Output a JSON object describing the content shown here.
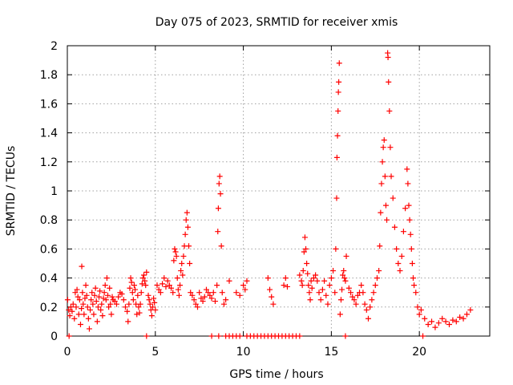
{
  "chart_data": {
    "type": "scatter",
    "title": "Day 075 of 2023, SRMTID for receiver xmis",
    "xlabel": "GPS time / hours",
    "ylabel": "SRMTID / TECUs",
    "xlim": [
      0,
      24
    ],
    "ylim": [
      0,
      2
    ],
    "x_ticks": [
      "0",
      "5",
      "10",
      "15",
      "20"
    ],
    "x_tick_values": [
      0,
      5,
      10,
      15,
      20
    ],
    "y_ticks": [
      "0",
      "0.2",
      "0.4",
      "0.6",
      "0.8",
      "1",
      "1.2",
      "1.4",
      "1.6",
      "1.8",
      "2"
    ],
    "y_tick_values": [
      0,
      0.2,
      0.4,
      0.6,
      0.8,
      1.0,
      1.2,
      1.4,
      1.6,
      1.8,
      2.0
    ],
    "grid": true,
    "marker": "plus",
    "color": "#ff0000",
    "series": [
      {
        "name": "SRMTID",
        "points": [
          [
            0.02,
            0.25
          ],
          [
            0.08,
            0.18
          ],
          [
            0.14,
            0.14
          ],
          [
            0.2,
            0.2
          ],
          [
            0.27,
            0.17
          ],
          [
            0.33,
            0.22
          ],
          [
            0.4,
            0.12
          ],
          [
            0.45,
            0.3
          ],
          [
            0.5,
            0.2
          ],
          [
            0.55,
            0.32
          ],
          [
            0.6,
            0.27
          ],
          [
            0.65,
            0.15
          ],
          [
            0.7,
            0.25
          ],
          [
            0.75,
            0.08
          ],
          [
            0.8,
            0.19
          ],
          [
            0.82,
            0.48
          ],
          [
            0.86,
            0.3
          ],
          [
            0.9,
            0.22
          ],
          [
            0.95,
            0.15
          ],
          [
            1.0,
            0.26
          ],
          [
            1.05,
            0.35
          ],
          [
            1.1,
            0.28
          ],
          [
            1.15,
            0.2
          ],
          [
            1.2,
            0.12
          ],
          [
            1.25,
            0.05
          ],
          [
            1.3,
            0.18
          ],
          [
            1.35,
            0.25
          ],
          [
            1.4,
            0.3
          ],
          [
            1.45,
            0.22
          ],
          [
            1.5,
            0.15
          ],
          [
            1.55,
            0.28
          ],
          [
            1.6,
            0.33
          ],
          [
            1.65,
            0.24
          ],
          [
            1.7,
            0.1
          ],
          [
            1.75,
            0.2
          ],
          [
            1.8,
            0.27
          ],
          [
            1.85,
            0.31
          ],
          [
            1.9,
            0.18
          ],
          [
            1.95,
            0.22
          ],
          [
            2.0,
            0.14
          ],
          [
            2.05,
            0.26
          ],
          [
            2.1,
            0.3
          ],
          [
            2.15,
            0.35
          ],
          [
            2.2,
            0.25
          ],
          [
            2.25,
            0.4
          ],
          [
            2.3,
            0.28
          ],
          [
            2.35,
            0.2
          ],
          [
            2.4,
            0.33
          ],
          [
            2.45,
            0.22
          ],
          [
            2.5,
            0.15
          ],
          [
            2.55,
            0.27
          ],
          [
            2.6,
            0.25
          ],
          [
            2.7,
            0.24
          ],
          [
            2.8,
            0.22
          ],
          [
            2.9,
            0.27
          ],
          [
            3.0,
            0.3
          ],
          [
            3.1,
            0.29
          ],
          [
            3.2,
            0.25
          ],
          [
            3.3,
            0.2
          ],
          [
            3.4,
            0.17
          ],
          [
            3.45,
            0.1
          ],
          [
            3.5,
            0.22
          ],
          [
            3.55,
            0.33
          ],
          [
            3.6,
            0.4
          ],
          [
            3.65,
            0.37
          ],
          [
            3.7,
            0.3
          ],
          [
            3.75,
            0.25
          ],
          [
            3.8,
            0.35
          ],
          [
            3.85,
            0.32
          ],
          [
            3.9,
            0.22
          ],
          [
            3.95,
            0.15
          ],
          [
            4.0,
            0.28
          ],
          [
            4.05,
            0.2
          ],
          [
            4.1,
            0.16
          ],
          [
            4.15,
            0.22
          ],
          [
            4.2,
            0.3
          ],
          [
            4.25,
            0.36
          ],
          [
            4.3,
            0.4
          ],
          [
            4.35,
            0.42
          ],
          [
            4.4,
            0.38
          ],
          [
            4.45,
            0.35
          ],
          [
            4.5,
            0.44
          ],
          [
            4.6,
            0.28
          ],
          [
            4.65,
            0.25
          ],
          [
            4.7,
            0.22
          ],
          [
            4.75,
            0.18
          ],
          [
            4.8,
            0.14
          ],
          [
            4.85,
            0.2
          ],
          [
            4.9,
            0.26
          ],
          [
            4.95,
            0.23
          ],
          [
            5.0,
            0.18
          ],
          [
            5.1,
            0.35
          ],
          [
            5.2,
            0.32
          ],
          [
            5.3,
            0.3
          ],
          [
            5.4,
            0.36
          ],
          [
            5.5,
            0.4
          ],
          [
            5.6,
            0.34
          ],
          [
            5.7,
            0.38
          ],
          [
            5.8,
            0.35
          ],
          [
            5.9,
            0.33
          ],
          [
            6.0,
            0.3
          ],
          [
            6.05,
            0.52
          ],
          [
            6.1,
            0.6
          ],
          [
            6.15,
            0.58
          ],
          [
            6.2,
            0.55
          ],
          [
            6.25,
            0.4
          ],
          [
            6.3,
            0.32
          ],
          [
            6.35,
            0.28
          ],
          [
            6.4,
            0.35
          ],
          [
            6.45,
            0.45
          ],
          [
            6.5,
            0.5
          ],
          [
            6.55,
            0.42
          ],
          [
            6.6,
            0.55
          ],
          [
            6.65,
            0.62
          ],
          [
            6.7,
            0.7
          ],
          [
            6.75,
            0.8
          ],
          [
            6.8,
            0.85
          ],
          [
            6.85,
            0.75
          ],
          [
            6.9,
            0.62
          ],
          [
            6.95,
            0.5
          ],
          [
            7.0,
            0.3
          ],
          [
            7.1,
            0.28
          ],
          [
            7.2,
            0.25
          ],
          [
            7.3,
            0.22
          ],
          [
            7.4,
            0.2
          ],
          [
            7.5,
            0.3
          ],
          [
            7.6,
            0.26
          ],
          [
            7.7,
            0.24
          ],
          [
            7.8,
            0.27
          ],
          [
            7.9,
            0.32
          ],
          [
            8.0,
            0.3
          ],
          [
            8.1,
            0.28
          ],
          [
            8.2,
            0.26
          ],
          [
            8.3,
            0.3
          ],
          [
            8.4,
            0.24
          ],
          [
            8.5,
            0.35
          ],
          [
            8.55,
            0.72
          ],
          [
            8.58,
            0.88
          ],
          [
            8.62,
            1.05
          ],
          [
            8.66,
            1.1
          ],
          [
            8.7,
            0.98
          ],
          [
            8.75,
            0.62
          ],
          [
            8.8,
            0.3
          ],
          [
            8.9,
            0.22
          ],
          [
            9.0,
            0.25
          ],
          [
            9.2,
            0.38
          ],
          [
            9.6,
            0.3
          ],
          [
            9.8,
            0.28
          ],
          [
            10.0,
            0.35
          ],
          [
            10.1,
            0.32
          ],
          [
            10.2,
            0.38
          ],
          [
            11.4,
            0.4
          ],
          [
            11.5,
            0.32
          ],
          [
            11.6,
            0.27
          ],
          [
            11.7,
            0.22
          ],
          [
            12.3,
            0.35
          ],
          [
            12.4,
            0.4
          ],
          [
            12.5,
            0.34
          ],
          [
            13.2,
            0.42
          ],
          [
            13.3,
            0.38
          ],
          [
            13.35,
            0.35
          ],
          [
            13.4,
            0.45
          ],
          [
            13.45,
            0.58
          ],
          [
            13.5,
            0.68
          ],
          [
            13.55,
            0.6
          ],
          [
            13.6,
            0.5
          ],
          [
            13.65,
            0.43
          ],
          [
            13.7,
            0.35
          ],
          [
            13.75,
            0.3
          ],
          [
            13.8,
            0.25
          ],
          [
            13.85,
            0.38
          ],
          [
            13.9,
            0.33
          ],
          [
            14.0,
            0.4
          ],
          [
            14.1,
            0.42
          ],
          [
            14.2,
            0.38
          ],
          [
            14.3,
            0.3
          ],
          [
            14.4,
            0.25
          ],
          [
            14.5,
            0.32
          ],
          [
            14.6,
            0.38
          ],
          [
            14.7,
            0.28
          ],
          [
            14.8,
            0.22
          ],
          [
            14.9,
            0.35
          ],
          [
            15.0,
            0.4
          ],
          [
            15.1,
            0.45
          ],
          [
            15.2,
            0.3
          ],
          [
            15.25,
            0.6
          ],
          [
            15.3,
            0.95
          ],
          [
            15.32,
            1.23
          ],
          [
            15.35,
            1.38
          ],
          [
            15.38,
            1.55
          ],
          [
            15.4,
            1.68
          ],
          [
            15.42,
            1.75
          ],
          [
            15.45,
            1.88
          ],
          [
            15.5,
            0.15
          ],
          [
            15.55,
            0.25
          ],
          [
            15.6,
            0.32
          ],
          [
            15.65,
            0.42
          ],
          [
            15.7,
            0.45
          ],
          [
            15.75,
            0.4
          ],
          [
            15.8,
            0.38
          ],
          [
            15.85,
            0.55
          ],
          [
            16.0,
            0.33
          ],
          [
            16.1,
            0.3
          ],
          [
            16.2,
            0.27
          ],
          [
            16.3,
            0.25
          ],
          [
            16.4,
            0.22
          ],
          [
            16.5,
            0.28
          ],
          [
            16.6,
            0.3
          ],
          [
            16.7,
            0.35
          ],
          [
            16.8,
            0.3
          ],
          [
            16.9,
            0.22
          ],
          [
            17.0,
            0.18
          ],
          [
            17.1,
            0.12
          ],
          [
            17.2,
            0.2
          ],
          [
            17.3,
            0.25
          ],
          [
            17.4,
            0.3
          ],
          [
            17.5,
            0.35
          ],
          [
            17.6,
            0.4
          ],
          [
            17.7,
            0.45
          ],
          [
            17.75,
            0.62
          ],
          [
            17.8,
            0.85
          ],
          [
            17.85,
            1.05
          ],
          [
            17.9,
            1.2
          ],
          [
            17.95,
            1.3
          ],
          [
            18.0,
            1.35
          ],
          [
            18.05,
            1.1
          ],
          [
            18.1,
            0.9
          ],
          [
            18.15,
            0.8
          ],
          [
            18.2,
            1.95
          ],
          [
            18.22,
            1.92
          ],
          [
            18.25,
            1.75
          ],
          [
            18.3,
            1.55
          ],
          [
            18.35,
            1.3
          ],
          [
            18.4,
            1.1
          ],
          [
            18.5,
            0.95
          ],
          [
            18.6,
            0.75
          ],
          [
            18.7,
            0.6
          ],
          [
            18.8,
            0.5
          ],
          [
            18.9,
            0.45
          ],
          [
            19.0,
            0.55
          ],
          [
            19.1,
            0.72
          ],
          [
            19.2,
            0.88
          ],
          [
            19.3,
            1.15
          ],
          [
            19.35,
            1.05
          ],
          [
            19.4,
            0.9
          ],
          [
            19.45,
            0.8
          ],
          [
            19.5,
            0.7
          ],
          [
            19.55,
            0.6
          ],
          [
            19.6,
            0.5
          ],
          [
            19.65,
            0.4
          ],
          [
            19.7,
            0.35
          ],
          [
            19.8,
            0.3
          ],
          [
            19.9,
            0.2
          ],
          [
            20.0,
            0.15
          ],
          [
            20.1,
            0.18
          ],
          [
            20.3,
            0.12
          ],
          [
            20.5,
            0.08
          ],
          [
            20.7,
            0.1
          ],
          [
            20.9,
            0.06
          ],
          [
            21.1,
            0.09
          ],
          [
            21.3,
            0.12
          ],
          [
            21.5,
            0.1
          ],
          [
            21.7,
            0.08
          ],
          [
            21.9,
            0.11
          ],
          [
            22.1,
            0.1
          ],
          [
            22.3,
            0.13
          ],
          [
            22.5,
            0.12
          ],
          [
            22.7,
            0.15
          ],
          [
            22.9,
            0.18
          ],
          [
            0.1,
            0.0
          ],
          [
            4.5,
            0.0
          ],
          [
            8.2,
            0.0
          ],
          [
            8.6,
            0.0
          ],
          [
            9.0,
            0.0
          ],
          [
            9.2,
            0.0
          ],
          [
            9.4,
            0.0
          ],
          [
            9.6,
            0.0
          ],
          [
            9.8,
            0.0
          ],
          [
            10.2,
            0.0
          ],
          [
            10.4,
            0.0
          ],
          [
            10.6,
            0.0
          ],
          [
            10.8,
            0.0
          ],
          [
            11.0,
            0.0
          ],
          [
            11.2,
            0.0
          ],
          [
            11.4,
            0.0
          ],
          [
            11.6,
            0.0
          ],
          [
            11.8,
            0.0
          ],
          [
            12.0,
            0.0
          ],
          [
            12.2,
            0.0
          ],
          [
            12.4,
            0.0
          ],
          [
            12.6,
            0.0
          ],
          [
            12.8,
            0.0
          ],
          [
            13.0,
            0.0
          ],
          [
            13.2,
            0.0
          ],
          [
            15.8,
            0.0
          ],
          [
            20.2,
            0.0
          ]
        ]
      }
    ]
  }
}
